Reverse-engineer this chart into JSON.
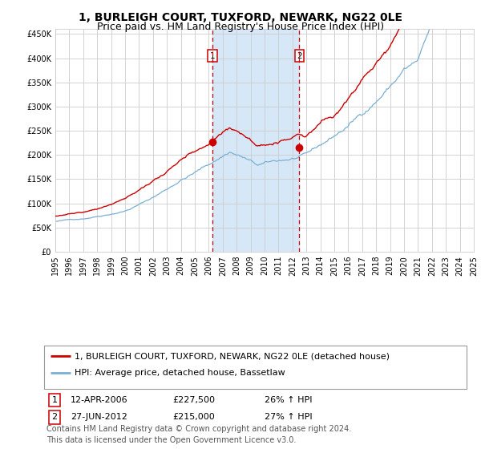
{
  "title": "1, BURLEIGH COURT, TUXFORD, NEWARK, NG22 0LE",
  "subtitle": "Price paid vs. HM Land Registry's House Price Index (HPI)",
  "ylim": [
    0,
    460000
  ],
  "yticks": [
    0,
    50000,
    100000,
    150000,
    200000,
    250000,
    300000,
    350000,
    400000,
    450000
  ],
  "ytick_labels": [
    "£0",
    "£50K",
    "£100K",
    "£150K",
    "£200K",
    "£250K",
    "£300K",
    "£350K",
    "£400K",
    "£450K"
  ],
  "xstart_year": 1995,
  "xend_year": 2025,
  "transaction1_date": 2006.27,
  "transaction1_price": 227500,
  "transaction2_date": 2012.49,
  "transaction2_price": 215000,
  "highlight_color": "#d6e8f7",
  "red_line_color": "#cc0000",
  "blue_line_color": "#7ab0d4",
  "grid_color": "#cccccc",
  "background_color": "#ffffff",
  "legend_label_red": "1, BURLEIGH COURT, TUXFORD, NEWARK, NG22 0LE (detached house)",
  "legend_label_blue": "HPI: Average price, detached house, Bassetlaw",
  "table_entries": [
    {
      "num": 1,
      "date": "12-APR-2006",
      "price": "£227,500",
      "hpi": "26% ↑ HPI"
    },
    {
      "num": 2,
      "date": "27-JUN-2012",
      "price": "£215,000",
      "hpi": "27% ↑ HPI"
    }
  ],
  "footnote": "Contains HM Land Registry data © Crown copyright and database right 2024.\nThis data is licensed under the Open Government Licence v3.0.",
  "title_fontsize": 10,
  "subtitle_fontsize": 9,
  "tick_fontsize": 7,
  "legend_fontsize": 8,
  "table_fontsize": 8,
  "footnote_fontsize": 7
}
